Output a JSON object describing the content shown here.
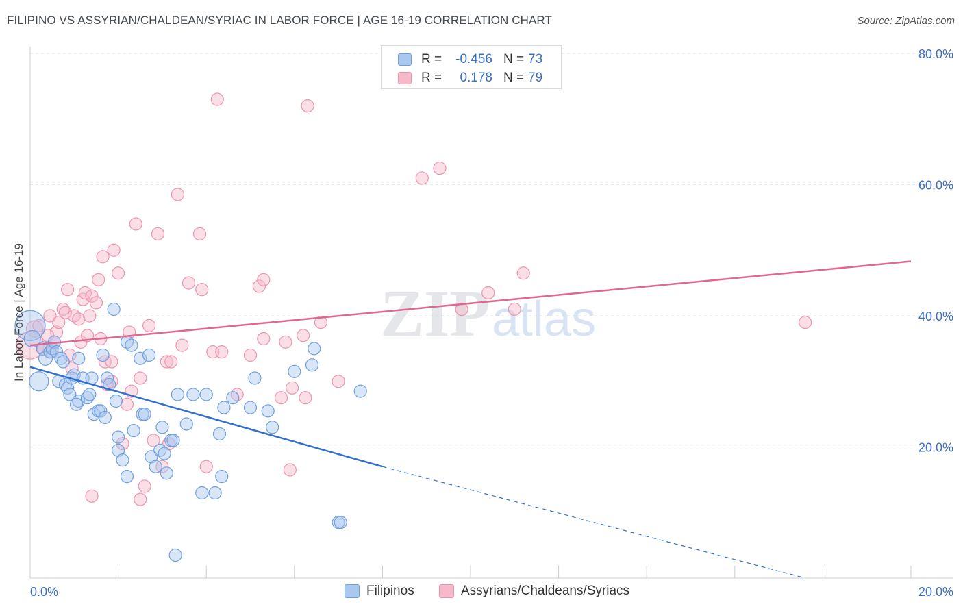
{
  "header": {
    "title": "FILIPINO VS ASSYRIAN/CHALDEAN/SYRIAC IN LABOR FORCE | AGE 16-19 CORRELATION CHART",
    "source": "Source: ZipAtlas.com"
  },
  "watermark": {
    "zip": "ZIP",
    "atlas": "atlas"
  },
  "legend_top": {
    "rows": [
      {
        "r_label": "R =",
        "r_value": "-0.456",
        "n_label": "N =",
        "n_value": "73"
      },
      {
        "r_label": "R =",
        "r_value": "0.178",
        "n_label": "N =",
        "n_value": "79"
      }
    ]
  },
  "legend_bottom": {
    "items": [
      {
        "label": "Filipinos"
      },
      {
        "label": "Assyrians/Chaldeans/Syriacs"
      }
    ]
  },
  "colors": {
    "blue_fill": "#a9c8f0",
    "blue_stroke": "#6f9fe0",
    "blue_line": "#2f6fd0",
    "pink_fill": "#f7b8ca",
    "pink_stroke": "#ec94ae",
    "pink_line": "#e06790",
    "axis_text": "#3b6fc7"
  },
  "chart_data": {
    "type": "scatter",
    "title": "FILIPINO VS ASSYRIAN/CHALDEAN/SYRIAC IN LABOR FORCE | AGE 16-19 CORRELATION CHART",
    "xlabel": "",
    "ylabel": "In Labor Force | Age 16-19",
    "xlim": [
      0,
      20
    ],
    "ylim": [
      0,
      80
    ],
    "x_tick_labels": [
      "0.0%",
      "20.0%"
    ],
    "y_ticks": [
      20,
      40,
      60,
      80
    ],
    "y_tick_labels": [
      "20.0%",
      "40.0%",
      "60.0%",
      "80.0%"
    ],
    "grid": true,
    "legend_placement": "top-center",
    "series": [
      {
        "name": "Filipinos",
        "r": -0.456,
        "n": 73,
        "trend": {
          "x0": 0,
          "y0": 32.2,
          "x1": 8.0,
          "y1": 17.0,
          "dashed_to_x": 17.6,
          "dashed_to_y": 0
        },
        "points": [
          [
            0.0,
            38.5,
            22
          ],
          [
            0.05,
            36.5,
            12
          ],
          [
            0.2,
            30.0,
            14
          ],
          [
            0.3,
            35.0,
            10
          ],
          [
            0.35,
            33.5,
            10
          ],
          [
            0.45,
            34.5,
            9
          ],
          [
            0.5,
            35.0,
            9
          ],
          [
            0.55,
            36.0,
            9
          ],
          [
            0.6,
            34.5,
            9
          ],
          [
            0.65,
            30.0,
            9
          ],
          [
            0.7,
            33.5,
            9
          ],
          [
            0.8,
            29.5,
            9
          ],
          [
            0.85,
            29.0,
            9
          ],
          [
            0.9,
            28.0,
            9
          ],
          [
            0.95,
            30.5,
            9
          ],
          [
            1.0,
            31.0,
            9
          ],
          [
            1.1,
            33.5,
            9
          ],
          [
            1.1,
            27.0,
            9
          ],
          [
            1.2,
            30.5,
            9
          ],
          [
            1.3,
            27.5,
            9
          ],
          [
            1.35,
            28.0,
            9
          ],
          [
            1.4,
            30.5,
            9
          ],
          [
            1.45,
            25.0,
            9
          ],
          [
            1.55,
            25.5,
            9
          ],
          [
            1.6,
            25.5,
            9
          ],
          [
            1.65,
            34.0,
            9
          ],
          [
            1.7,
            24.5,
            9
          ],
          [
            1.75,
            30.5,
            9
          ],
          [
            1.8,
            29.5,
            9
          ],
          [
            1.9,
            41.0,
            9
          ],
          [
            1.95,
            27.0,
            9
          ],
          [
            2.0,
            21.5,
            9
          ],
          [
            2.0,
            19.5,
            9
          ],
          [
            2.1,
            18.0,
            9
          ],
          [
            2.2,
            15.5,
            9
          ],
          [
            2.2,
            36.0,
            9
          ],
          [
            2.3,
            35.5,
            9
          ],
          [
            2.35,
            22.5,
            9
          ],
          [
            2.5,
            33.5,
            9
          ],
          [
            2.55,
            25.0,
            9
          ],
          [
            2.6,
            25.0,
            9
          ],
          [
            2.7,
            34.0,
            9
          ],
          [
            2.75,
            18.5,
            9
          ],
          [
            2.85,
            17.0,
            9
          ],
          [
            2.95,
            19.5,
            9
          ],
          [
            3.0,
            23.0,
            9
          ],
          [
            3.05,
            19.0,
            9
          ],
          [
            3.1,
            16.0,
            9
          ],
          [
            3.2,
            21.0,
            9
          ],
          [
            3.25,
            21.0,
            9
          ],
          [
            3.3,
            3.5,
            9
          ],
          [
            3.35,
            28.0,
            9
          ],
          [
            3.55,
            23.5,
            9
          ],
          [
            3.7,
            28.0,
            9
          ],
          [
            3.9,
            13.0,
            9
          ],
          [
            4.0,
            28.0,
            9
          ],
          [
            4.2,
            13.0,
            9
          ],
          [
            4.3,
            22.0,
            9
          ],
          [
            4.35,
            15.5,
            9
          ],
          [
            4.4,
            26.0,
            9
          ],
          [
            4.6,
            27.5,
            9
          ],
          [
            5.0,
            26.0,
            9
          ],
          [
            5.1,
            30.5,
            9
          ],
          [
            5.4,
            25.5,
            9
          ],
          [
            5.5,
            23.0,
            9
          ],
          [
            6.0,
            31.5,
            9
          ],
          [
            6.4,
            32.5,
            9
          ],
          [
            6.45,
            35.0,
            9
          ],
          [
            7.0,
            8.5,
            9
          ],
          [
            7.05,
            8.5,
            9
          ],
          [
            7.5,
            28.5,
            9
          ],
          [
            0.75,
            33.0,
            9
          ],
          [
            1.05,
            26.5,
            9
          ]
        ]
      },
      {
        "name": "Assyrians/Chaldeans/Syriacs",
        "r": 0.178,
        "n": 79,
        "trend": {
          "x0": 0,
          "y0": 35.5,
          "x1": 20.0,
          "y1": 48.3
        },
        "points": [
          [
            0.0,
            35.5,
            20
          ],
          [
            0.1,
            38.0,
            12
          ],
          [
            0.2,
            38.5,
            9
          ],
          [
            0.3,
            35.0,
            9
          ],
          [
            0.45,
            40.0,
            9
          ],
          [
            0.5,
            34.5,
            9
          ],
          [
            0.55,
            36.0,
            9
          ],
          [
            0.6,
            37.5,
            9
          ],
          [
            0.65,
            39.0,
            9
          ],
          [
            0.75,
            41.0,
            9
          ],
          [
            0.8,
            40.5,
            9
          ],
          [
            0.85,
            44.0,
            9
          ],
          [
            0.9,
            34.0,
            9
          ],
          [
            0.95,
            32.0,
            9
          ],
          [
            1.0,
            40.0,
            9
          ],
          [
            1.1,
            39.5,
            9
          ],
          [
            1.15,
            36.0,
            9
          ],
          [
            1.2,
            42.5,
            9
          ],
          [
            1.25,
            43.5,
            9
          ],
          [
            1.3,
            37.0,
            9
          ],
          [
            1.35,
            40.0,
            9
          ],
          [
            1.4,
            43.0,
            9
          ],
          [
            1.5,
            42.0,
            9
          ],
          [
            1.55,
            45.5,
            9
          ],
          [
            1.6,
            36.5,
            9
          ],
          [
            1.65,
            49.0,
            9
          ],
          [
            1.7,
            33.0,
            9
          ],
          [
            1.75,
            29.5,
            9
          ],
          [
            1.85,
            30.0,
            9
          ],
          [
            1.9,
            50.0,
            9
          ],
          [
            2.0,
            46.5,
            9
          ],
          [
            2.1,
            20.5,
            9
          ],
          [
            2.2,
            26.5,
            9
          ],
          [
            2.25,
            37.5,
            9
          ],
          [
            2.3,
            28.5,
            9
          ],
          [
            2.4,
            54.0,
            9
          ],
          [
            2.5,
            30.5,
            9
          ],
          [
            2.6,
            14.0,
            9
          ],
          [
            2.7,
            38.5,
            9
          ],
          [
            2.8,
            21.0,
            9
          ],
          [
            2.9,
            52.5,
            9
          ],
          [
            3.0,
            17.0,
            9
          ],
          [
            3.1,
            33.0,
            9
          ],
          [
            3.2,
            33.0,
            9
          ],
          [
            3.35,
            58.5,
            9
          ],
          [
            3.45,
            35.5,
            9
          ],
          [
            3.6,
            45.0,
            9
          ],
          [
            3.85,
            52.5,
            9
          ],
          [
            3.9,
            44.0,
            9
          ],
          [
            4.0,
            17.0,
            9
          ],
          [
            4.15,
            34.5,
            9
          ],
          [
            4.25,
            73.0,
            9
          ],
          [
            4.35,
            34.5,
            9
          ],
          [
            4.7,
            28.0,
            9
          ],
          [
            5.0,
            34.0,
            9
          ],
          [
            5.2,
            44.5,
            9
          ],
          [
            5.3,
            45.5,
            9
          ],
          [
            5.3,
            36.5,
            9
          ],
          [
            5.7,
            27.5,
            9
          ],
          [
            5.8,
            36.0,
            9
          ],
          [
            5.9,
            16.5,
            9
          ],
          [
            5.95,
            29.0,
            9
          ],
          [
            6.2,
            37.0,
            9
          ],
          [
            6.25,
            27.5,
            9
          ],
          [
            6.3,
            72.0,
            9
          ],
          [
            6.6,
            39.0,
            9
          ],
          [
            7.0,
            30.0,
            9
          ],
          [
            8.9,
            61.0,
            9
          ],
          [
            9.3,
            62.5,
            9
          ],
          [
            9.8,
            41.0,
            9
          ],
          [
            10.4,
            43.5,
            9
          ],
          [
            11.0,
            41.0,
            9
          ],
          [
            11.2,
            46.5,
            9
          ],
          [
            17.6,
            39.0,
            9
          ],
          [
            1.4,
            12.5,
            9
          ],
          [
            2.5,
            12.0,
            9
          ],
          [
            0.4,
            37.0,
            9
          ],
          [
            1.85,
            33.0,
            9
          ],
          [
            3.15,
            20.5,
            9
          ]
        ]
      }
    ]
  }
}
